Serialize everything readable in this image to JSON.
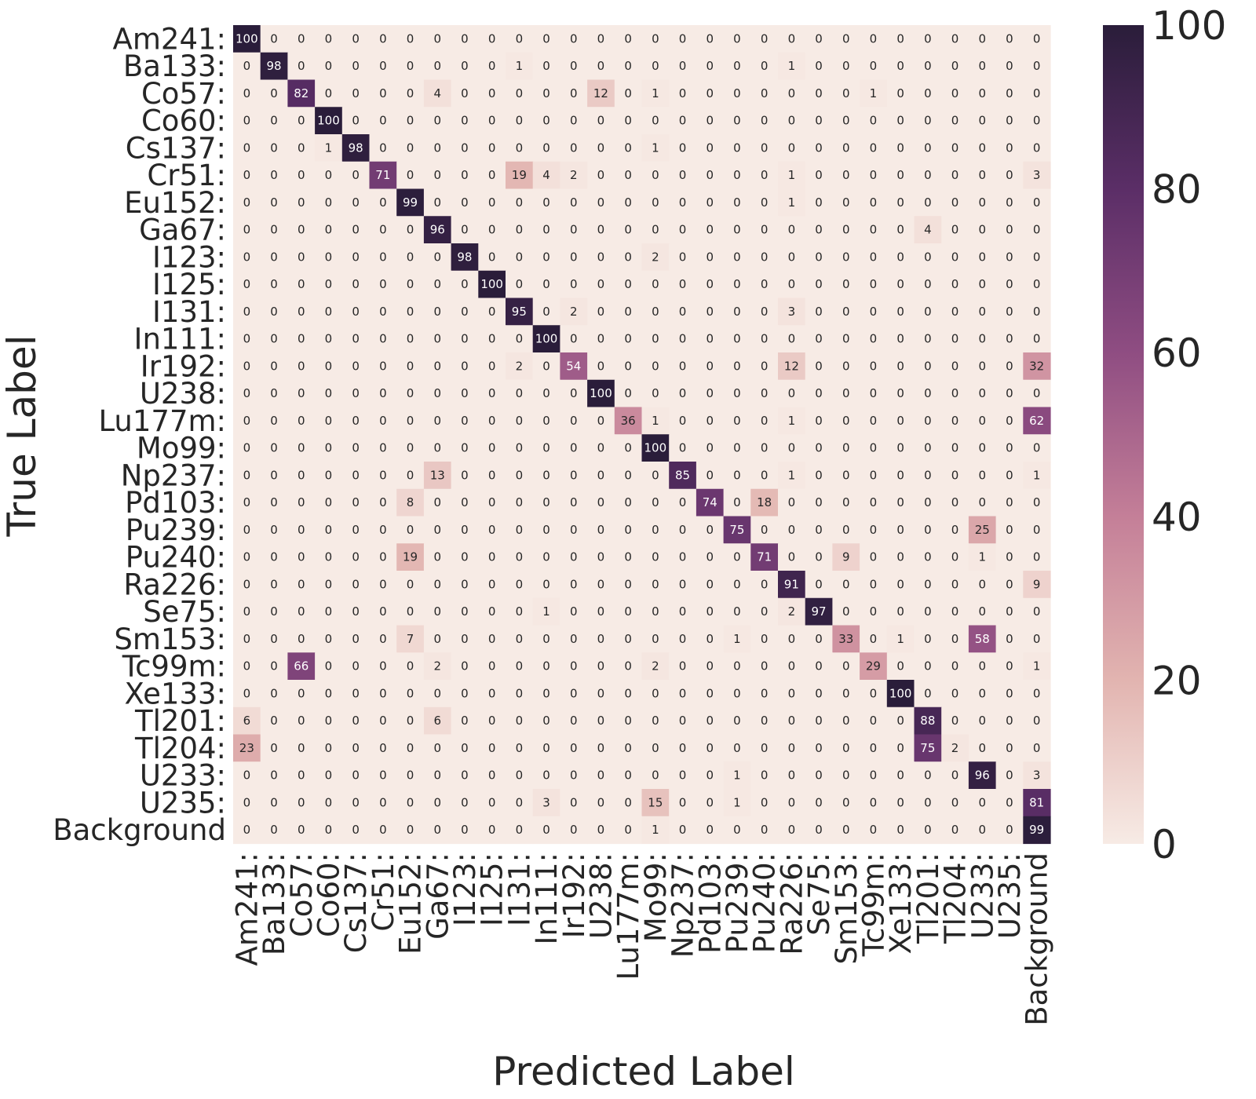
{
  "chart_data": {
    "type": "heatmap",
    "title": "",
    "xlabel": "Predicted Label",
    "ylabel": "True Label",
    "row_labels": [
      "Am241:",
      "Ba133:",
      "Co57:",
      "Co60:",
      "Cs137:",
      "Cr51:",
      "Eu152:",
      "Ga67:",
      "I123:",
      "I125:",
      "I131:",
      "In111:",
      "Ir192:",
      "U238:",
      "Lu177m:",
      "Mo99:",
      "Np237:",
      "Pd103:",
      "Pu239:",
      "Pu240:",
      "Ra226:",
      "Se75:",
      "Sm153:",
      "Tc99m:",
      "Xe133:",
      "Tl201:",
      "Tl204:",
      "U233:",
      "U235:",
      "Background"
    ],
    "col_labels": [
      "Am241:",
      "Ba133:",
      "Co57:",
      "Co60:",
      "Cs137:",
      "Cr51:",
      "Eu152:",
      "Ga67:",
      "I123:",
      "I125:",
      "I131:",
      "In111:",
      "Ir192:",
      "U238:",
      "Lu177m:",
      "Mo99:",
      "Np237:",
      "Pd103:",
      "Pu239:",
      "Pu240:",
      "Ra226:",
      "Se75:",
      "Sm153:",
      "Tc99m:",
      "Xe133:",
      "Tl201:",
      "Tl204:",
      "U233:",
      "U235:",
      "Background"
    ],
    "values": [
      [
        100,
        0,
        0,
        0,
        0,
        0,
        0,
        0,
        0,
        0,
        0,
        0,
        0,
        0,
        0,
        0,
        0,
        0,
        0,
        0,
        0,
        0,
        0,
        0,
        0,
        0,
        0,
        0,
        0,
        0
      ],
      [
        0,
        98,
        0,
        0,
        0,
        0,
        0,
        0,
        0,
        0,
        1,
        0,
        0,
        0,
        0,
        0,
        0,
        0,
        0,
        0,
        1,
        0,
        0,
        0,
        0,
        0,
        0,
        0,
        0,
        0
      ],
      [
        0,
        0,
        82,
        0,
        0,
        0,
        0,
        4,
        0,
        0,
        0,
        0,
        0,
        12,
        0,
        1,
        0,
        0,
        0,
        0,
        0,
        0,
        0,
        1,
        0,
        0,
        0,
        0,
        0,
        0
      ],
      [
        0,
        0,
        0,
        100,
        0,
        0,
        0,
        0,
        0,
        0,
        0,
        0,
        0,
        0,
        0,
        0,
        0,
        0,
        0,
        0,
        0,
        0,
        0,
        0,
        0,
        0,
        0,
        0,
        0,
        0
      ],
      [
        0,
        0,
        0,
        1,
        98,
        0,
        0,
        0,
        0,
        0,
        0,
        0,
        0,
        0,
        0,
        1,
        0,
        0,
        0,
        0,
        0,
        0,
        0,
        0,
        0,
        0,
        0,
        0,
        0,
        0
      ],
      [
        0,
        0,
        0,
        0,
        0,
        71,
        0,
        0,
        0,
        0,
        19,
        4,
        2,
        0,
        0,
        0,
        0,
        0,
        0,
        0,
        1,
        0,
        0,
        0,
        0,
        0,
        0,
        0,
        0,
        3
      ],
      [
        0,
        0,
        0,
        0,
        0,
        0,
        99,
        0,
        0,
        0,
        0,
        0,
        0,
        0,
        0,
        0,
        0,
        0,
        0,
        0,
        1,
        0,
        0,
        0,
        0,
        0,
        0,
        0,
        0,
        0
      ],
      [
        0,
        0,
        0,
        0,
        0,
        0,
        0,
        96,
        0,
        0,
        0,
        0,
        0,
        0,
        0,
        0,
        0,
        0,
        0,
        0,
        0,
        0,
        0,
        0,
        0,
        4,
        0,
        0,
        0,
        0
      ],
      [
        0,
        0,
        0,
        0,
        0,
        0,
        0,
        0,
        98,
        0,
        0,
        0,
        0,
        0,
        0,
        2,
        0,
        0,
        0,
        0,
        0,
        0,
        0,
        0,
        0,
        0,
        0,
        0,
        0,
        0
      ],
      [
        0,
        0,
        0,
        0,
        0,
        0,
        0,
        0,
        0,
        100,
        0,
        0,
        0,
        0,
        0,
        0,
        0,
        0,
        0,
        0,
        0,
        0,
        0,
        0,
        0,
        0,
        0,
        0,
        0,
        0
      ],
      [
        0,
        0,
        0,
        0,
        0,
        0,
        0,
        0,
        0,
        0,
        95,
        0,
        2,
        0,
        0,
        0,
        0,
        0,
        0,
        0,
        3,
        0,
        0,
        0,
        0,
        0,
        0,
        0,
        0,
        0
      ],
      [
        0,
        0,
        0,
        0,
        0,
        0,
        0,
        0,
        0,
        0,
        0,
        100,
        0,
        0,
        0,
        0,
        0,
        0,
        0,
        0,
        0,
        0,
        0,
        0,
        0,
        0,
        0,
        0,
        0,
        0
      ],
      [
        0,
        0,
        0,
        0,
        0,
        0,
        0,
        0,
        0,
        0,
        2,
        0,
        54,
        0,
        0,
        0,
        0,
        0,
        0,
        0,
        12,
        0,
        0,
        0,
        0,
        0,
        0,
        0,
        0,
        32
      ],
      [
        0,
        0,
        0,
        0,
        0,
        0,
        0,
        0,
        0,
        0,
        0,
        0,
        0,
        100,
        0,
        0,
        0,
        0,
        0,
        0,
        0,
        0,
        0,
        0,
        0,
        0,
        0,
        0,
        0,
        0
      ],
      [
        0,
        0,
        0,
        0,
        0,
        0,
        0,
        0,
        0,
        0,
        0,
        0,
        0,
        0,
        36,
        1,
        0,
        0,
        0,
        0,
        1,
        0,
        0,
        0,
        0,
        0,
        0,
        0,
        0,
        62
      ],
      [
        0,
        0,
        0,
        0,
        0,
        0,
        0,
        0,
        0,
        0,
        0,
        0,
        0,
        0,
        0,
        100,
        0,
        0,
        0,
        0,
        0,
        0,
        0,
        0,
        0,
        0,
        0,
        0,
        0,
        0
      ],
      [
        0,
        0,
        0,
        0,
        0,
        0,
        0,
        13,
        0,
        0,
        0,
        0,
        0,
        0,
        0,
        0,
        85,
        0,
        0,
        0,
        1,
        0,
        0,
        0,
        0,
        0,
        0,
        0,
        0,
        1
      ],
      [
        0,
        0,
        0,
        0,
        0,
        0,
        8,
        0,
        0,
        0,
        0,
        0,
        0,
        0,
        0,
        0,
        0,
        74,
        0,
        18,
        0,
        0,
        0,
        0,
        0,
        0,
        0,
        0,
        0,
        0
      ],
      [
        0,
        0,
        0,
        0,
        0,
        0,
        0,
        0,
        0,
        0,
        0,
        0,
        0,
        0,
        0,
        0,
        0,
        0,
        75,
        0,
        0,
        0,
        0,
        0,
        0,
        0,
        0,
        25,
        0,
        0
      ],
      [
        0,
        0,
        0,
        0,
        0,
        0,
        19,
        0,
        0,
        0,
        0,
        0,
        0,
        0,
        0,
        0,
        0,
        0,
        0,
        71,
        0,
        0,
        9,
        0,
        0,
        0,
        0,
        1,
        0,
        0
      ],
      [
        0,
        0,
        0,
        0,
        0,
        0,
        0,
        0,
        0,
        0,
        0,
        0,
        0,
        0,
        0,
        0,
        0,
        0,
        0,
        0,
        91,
        0,
        0,
        0,
        0,
        0,
        0,
        0,
        0,
        9
      ],
      [
        0,
        0,
        0,
        0,
        0,
        0,
        0,
        0,
        0,
        0,
        0,
        1,
        0,
        0,
        0,
        0,
        0,
        0,
        0,
        0,
        2,
        97,
        0,
        0,
        0,
        0,
        0,
        0,
        0,
        0
      ],
      [
        0,
        0,
        0,
        0,
        0,
        0,
        7,
        0,
        0,
        0,
        0,
        0,
        0,
        0,
        0,
        0,
        0,
        0,
        1,
        0,
        0,
        0,
        33,
        0,
        1,
        0,
        0,
        58,
        0,
        0
      ],
      [
        0,
        0,
        66,
        0,
        0,
        0,
        0,
        2,
        0,
        0,
        0,
        0,
        0,
        0,
        0,
        2,
        0,
        0,
        0,
        0,
        0,
        0,
        0,
        29,
        0,
        0,
        0,
        0,
        0,
        1
      ],
      [
        0,
        0,
        0,
        0,
        0,
        0,
        0,
        0,
        0,
        0,
        0,
        0,
        0,
        0,
        0,
        0,
        0,
        0,
        0,
        0,
        0,
        0,
        0,
        0,
        100,
        0,
        0,
        0,
        0,
        0
      ],
      [
        6,
        0,
        0,
        0,
        0,
        0,
        0,
        6,
        0,
        0,
        0,
        0,
        0,
        0,
        0,
        0,
        0,
        0,
        0,
        0,
        0,
        0,
        0,
        0,
        0,
        88,
        0,
        0,
        0,
        0
      ],
      [
        23,
        0,
        0,
        0,
        0,
        0,
        0,
        0,
        0,
        0,
        0,
        0,
        0,
        0,
        0,
        0,
        0,
        0,
        0,
        0,
        0,
        0,
        0,
        0,
        0,
        75,
        2,
        0,
        0,
        0
      ],
      [
        0,
        0,
        0,
        0,
        0,
        0,
        0,
        0,
        0,
        0,
        0,
        0,
        0,
        0,
        0,
        0,
        0,
        0,
        1,
        0,
        0,
        0,
        0,
        0,
        0,
        0,
        0,
        96,
        0,
        3
      ],
      [
        0,
        0,
        0,
        0,
        0,
        0,
        0,
        0,
        0,
        0,
        0,
        3,
        0,
        0,
        0,
        15,
        0,
        0,
        1,
        0,
        0,
        0,
        0,
        0,
        0,
        0,
        0,
        0,
        0,
        81
      ],
      [
        0,
        0,
        0,
        0,
        0,
        0,
        0,
        0,
        0,
        0,
        0,
        0,
        0,
        0,
        0,
        1,
        0,
        0,
        0,
        0,
        0,
        0,
        0,
        0,
        0,
        0,
        0,
        0,
        0,
        99
      ]
    ],
    "colorbar": {
      "range": [
        0,
        100
      ],
      "ticks": [
        0,
        20,
        40,
        60,
        80,
        100
      ],
      "colors": [
        "#f7ebe5",
        "#e2b4b0",
        "#c47f98",
        "#8f4d82",
        "#5b2e67",
        "#2a1d3a"
      ]
    },
    "grid": false,
    "legend": "none"
  }
}
